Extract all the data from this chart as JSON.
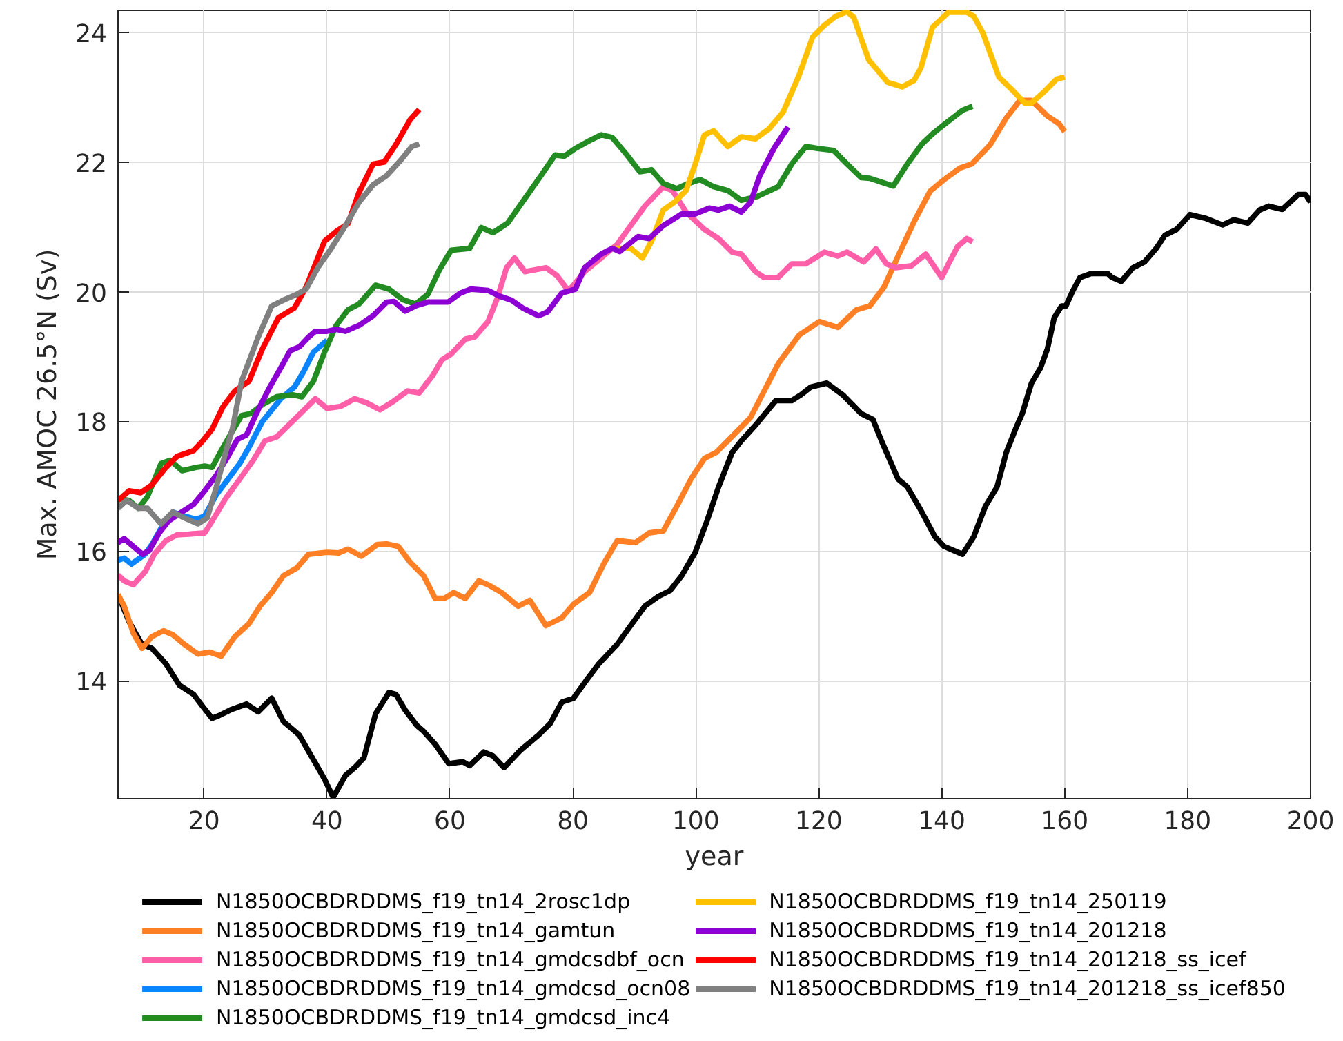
{
  "chart_data": {
    "type": "line",
    "xlabel": "year",
    "ylabel": "Max. AMOC 26.5°N (Sv)",
    "xlim": [
      6,
      200
    ],
    "ylim": [
      12.18,
      24.34
    ],
    "xticks": [
      20,
      40,
      60,
      80,
      100,
      120,
      140,
      160,
      180,
      200
    ],
    "yticks": [
      14,
      16,
      18,
      20,
      22,
      24
    ],
    "grid": true,
    "legend": "bottom",
    "line_style": "solid",
    "series": [
      {
        "name": "N1850OCBDRDDMS_f19_tn14_2rosc1dp",
        "color": "#000000",
        "x": [
          6,
          7.8,
          9.9,
          11.5,
          13.8,
          16,
          18.3,
          19.8,
          21.3,
          22.4,
          24.3,
          26.9,
          28.8,
          31,
          32.9,
          34.4,
          35.5,
          37.8,
          39.6,
          41,
          43,
          44.5,
          46,
          47.9,
          50.1,
          51.2,
          52.7,
          54.6,
          55.7,
          57.6,
          59.8,
          62.1,
          63.2,
          65.5,
          67,
          68.8,
          71.5,
          74.4,
          76.3,
          78.2,
          80.1,
          82.3,
          84.2,
          87.2,
          89.4,
          91.7,
          93.9,
          95.8,
          97.7,
          99.9,
          101.8,
          103.7,
          105.9,
          107.4,
          109.7,
          113,
          115.6,
          117.1,
          118.7,
          121.3,
          123.9,
          126.9,
          128.8,
          130.2,
          132.9,
          134.4,
          136.6,
          138.9,
          140.4,
          143.4,
          145.2,
          147.1,
          149,
          150.5,
          152,
          153.1,
          154.6,
          156.1,
          157.2,
          158.3,
          159.5,
          160.2,
          161.3,
          162.5,
          164.3,
          167,
          167.7,
          169.2,
          171.1,
          173,
          174.9,
          176.3,
          178.2,
          180.4,
          183,
          185.7,
          187.5,
          189.8,
          191.7,
          193.2,
          195.4,
          198,
          199.2,
          200
        ],
        "values": [
          15.33,
          14.91,
          14.56,
          14.5,
          14.26,
          13.93,
          13.79,
          13.6,
          13.42,
          13.46,
          13.55,
          13.64,
          13.52,
          13.73,
          13.37,
          13.25,
          13.16,
          12.78,
          12.48,
          12.2,
          12.54,
          12.66,
          12.81,
          13.49,
          13.82,
          13.79,
          13.55,
          13.31,
          13.22,
          13.02,
          12.72,
          12.75,
          12.69,
          12.9,
          12.84,
          12.66,
          12.93,
          13.16,
          13.34,
          13.67,
          13.73,
          14.02,
          14.26,
          14.56,
          14.85,
          15.15,
          15.3,
          15.39,
          15.62,
          15.98,
          16.46,
          16.99,
          17.52,
          17.7,
          17.94,
          18.32,
          18.32,
          18.41,
          18.53,
          18.59,
          18.41,
          18.12,
          18.03,
          17.7,
          17.11,
          16.99,
          16.63,
          16.22,
          16.07,
          15.95,
          16.22,
          16.69,
          16.99,
          17.52,
          17.88,
          18.12,
          18.59,
          18.83,
          19.12,
          19.6,
          19.78,
          19.78,
          20.01,
          20.22,
          20.28,
          20.28,
          20.22,
          20.16,
          20.37,
          20.46,
          20.67,
          20.87,
          20.96,
          21.19,
          21.13,
          21.03,
          21.11,
          21.06,
          21.26,
          21.32,
          21.27,
          21.5,
          21.5,
          21.38
        ]
      },
      {
        "name": "N1850OCBDRDDMS_f19_tn14_gamtun",
        "color": "#ff7f24",
        "x": [
          6,
          7,
          8.5,
          9.9,
          11.5,
          13.4,
          14.9,
          16.8,
          19,
          20.9,
          22.8,
          25,
          27.3,
          29.1,
          31,
          32.9,
          35.1,
          37,
          40,
          41.9,
          43.4,
          45.6,
          48.2,
          49.7,
          51.6,
          53.5,
          55.7,
          57.6,
          59.1,
          60.6,
          62.5,
          64.7,
          66.2,
          68.4,
          71.1,
          73,
          75.6,
          78.2,
          80.1,
          82.7,
          85,
          87.2,
          90.2,
          92.4,
          94.7,
          96.9,
          99.2,
          101.4,
          103.3,
          105.2,
          108.9,
          113.4,
          116.8,
          120.1,
          123.1,
          126.1,
          128.3,
          130.6,
          132.9,
          135.5,
          138.1,
          140.4,
          143,
          144.9,
          147.9,
          150.5,
          152.7,
          154.6,
          157.2,
          159.1,
          160
        ],
        "values": [
          15.33,
          15.15,
          14.73,
          14.5,
          14.68,
          14.77,
          14.71,
          14.56,
          14.41,
          14.44,
          14.38,
          14.68,
          14.88,
          15.15,
          15.36,
          15.62,
          15.74,
          15.95,
          15.98,
          15.97,
          16.03,
          15.92,
          16.1,
          16.11,
          16.07,
          15.83,
          15.62,
          15.27,
          15.27,
          15.36,
          15.27,
          15.54,
          15.48,
          15.36,
          15.15,
          15.24,
          14.85,
          14.97,
          15.18,
          15.36,
          15.8,
          16.16,
          16.13,
          16.28,
          16.31,
          16.69,
          17.11,
          17.43,
          17.52,
          17.7,
          18.06,
          18.89,
          19.33,
          19.54,
          19.45,
          19.72,
          19.78,
          20.07,
          20.55,
          21.08,
          21.55,
          21.73,
          21.91,
          21.97,
          22.27,
          22.68,
          22.95,
          22.95,
          22.71,
          22.59,
          22.47
        ]
      },
      {
        "name": "N1850OCBDRDDMS_f19_tn14_gmdcsdbf_ocn",
        "color": "#ff5fa8",
        "x": [
          6,
          7,
          8.5,
          10.4,
          11.9,
          13.8,
          15.6,
          17.5,
          20.1,
          21.3,
          23.5,
          25.8,
          28,
          29.9,
          31.8,
          34.7,
          38.1,
          40,
          42.2,
          44.5,
          46.4,
          48.6,
          50.5,
          53.1,
          55,
          57.2,
          58.7,
          60.2,
          62.5,
          64,
          66.2,
          67.7,
          69.2,
          70.5,
          72.2,
          75.6,
          77.4,
          79.3,
          81.9,
          84.2,
          87.2,
          89.4,
          91.7,
          94.7,
          96.2,
          98.4,
          101.4,
          103.7,
          105.9,
          107.4,
          109.7,
          111.1,
          113.4,
          115.6,
          117.9,
          120.9,
          123.1,
          124.6,
          127.3,
          129.3,
          131,
          132.5,
          135.1,
          137.4,
          138.9,
          140,
          141.1,
          142.6,
          144.1,
          145
        ],
        "values": [
          15.63,
          15.54,
          15.48,
          15.68,
          15.95,
          16.16,
          16.25,
          16.26,
          16.28,
          16.46,
          16.81,
          17.11,
          17.4,
          17.7,
          17.76,
          18.03,
          18.35,
          18.2,
          18.23,
          18.35,
          18.29,
          18.18,
          18.29,
          18.47,
          18.44,
          18.71,
          18.95,
          19.04,
          19.27,
          19.3,
          19.54,
          19.9,
          20.37,
          20.52,
          20.31,
          20.37,
          20.25,
          20.01,
          20.31,
          20.49,
          20.73,
          21.02,
          21.32,
          21.62,
          21.56,
          21.23,
          20.96,
          20.82,
          20.61,
          20.58,
          20.31,
          20.22,
          20.22,
          20.43,
          20.43,
          20.61,
          20.55,
          20.61,
          20.46,
          20.66,
          20.43,
          20.37,
          20.4,
          20.58,
          20.37,
          20.22,
          20.43,
          20.7,
          20.82,
          20.77
        ]
      },
      {
        "name": "N1850OCBDRDDMS_f19_tn14_gmdcsd_ocn08",
        "color": "#0a84ff",
        "x": [
          6,
          7,
          8.2,
          10.4,
          11.5,
          13.4,
          14.9,
          16.8,
          18.7,
          20.1,
          22,
          23.9,
          25.8,
          27.3,
          29.5,
          32.5,
          34.7,
          36.2,
          37.8,
          40
        ],
        "values": [
          15.86,
          15.89,
          15.8,
          15.95,
          16.1,
          16.42,
          16.6,
          16.54,
          16.49,
          16.54,
          16.87,
          17.11,
          17.35,
          17.6,
          18.0,
          18.35,
          18.53,
          18.77,
          19.07,
          19.25
        ]
      },
      {
        "name": "N1850OCBDRDDMS_f19_tn14_gmdcsd_inc4",
        "color": "#228b22",
        "x": [
          6,
          7.8,
          9.3,
          10.8,
          13,
          14.5,
          16.4,
          18.7,
          20.1,
          21.3,
          22.8,
          24.3,
          26.1,
          27.6,
          29.5,
          31.8,
          34.4,
          35.9,
          37.8,
          39.6,
          41.5,
          43.4,
          45.2,
          47.9,
          50.1,
          52.3,
          54.4,
          56.4,
          58.3,
          60.2,
          63.2,
          65.1,
          67,
          69.4,
          72.2,
          74.8,
          77.1,
          78.6,
          80.4,
          82.7,
          84.6,
          86.4,
          88.7,
          90.9,
          92.8,
          94.7,
          96.9,
          98.8,
          100.7,
          102.9,
          105.2,
          107.4,
          110,
          113.4,
          115.6,
          117.9,
          119.8,
          122.4,
          124.6,
          126.9,
          128.3,
          130.2,
          132.1,
          134.4,
          136.8,
          138.7,
          140.4,
          143.4,
          145
        ],
        "values": [
          16.81,
          16.78,
          16.66,
          16.84,
          17.35,
          17.4,
          17.24,
          17.29,
          17.31,
          17.29,
          17.55,
          17.8,
          18.09,
          18.12,
          18.26,
          18.38,
          18.41,
          18.38,
          18.62,
          19.07,
          19.48,
          19.72,
          19.81,
          20.1,
          20.04,
          19.88,
          19.81,
          19.96,
          20.34,
          20.64,
          20.67,
          20.99,
          20.91,
          21.06,
          21.44,
          21.79,
          22.11,
          22.09,
          22.21,
          22.33,
          22.42,
          22.38,
          22.12,
          21.85,
          21.88,
          21.67,
          21.59,
          21.67,
          21.73,
          21.62,
          21.56,
          21.41,
          21.47,
          21.62,
          21.97,
          22.24,
          22.21,
          22.18,
          21.97,
          21.76,
          21.75,
          21.69,
          21.63,
          21.97,
          22.28,
          22.45,
          22.58,
          22.8,
          22.86
        ]
      },
      {
        "name": "N1850OCBDRDDMS_f19_tn14_250119",
        "color": "#ffc000",
        "x": [
          86.4,
          89.4,
          91.3,
          92.8,
          94.7,
          96.5,
          98.4,
          99.9,
          101.4,
          102.9,
          105.2,
          107.4,
          109.7,
          111.9,
          114.2,
          116.8,
          119,
          120.9,
          122.8,
          124.6,
          125.7,
          128.1,
          131.2,
          133.6,
          135.5,
          136.6,
          138.5,
          141.1,
          144.1,
          145.2,
          146.7,
          149.3,
          151.6,
          153.5,
          154.6,
          156.5,
          158.7,
          160
        ],
        "values": [
          20.67,
          20.67,
          20.52,
          20.78,
          21.26,
          21.38,
          21.56,
          21.97,
          22.42,
          22.48,
          22.24,
          22.39,
          22.36,
          22.51,
          22.77,
          23.34,
          23.93,
          24.11,
          24.25,
          24.32,
          24.23,
          23.58,
          23.23,
          23.16,
          23.26,
          23.45,
          24.08,
          24.31,
          24.31,
          24.25,
          23.99,
          23.31,
          23.1,
          22.91,
          22.91,
          23.07,
          23.28,
          23.31
        ]
      },
      {
        "name": "N1850OCBDRDDMS_f19_tn14_201218",
        "color": "#8c00d4",
        "x": [
          6,
          7,
          8.5,
          10,
          11.1,
          12.7,
          14.2,
          16,
          18.3,
          20.1,
          22,
          23.9,
          25.4,
          26.9,
          28.8,
          30.7,
          32.5,
          34,
          35.5,
          37,
          38.1,
          40,
          41.5,
          43,
          45.2,
          47.5,
          49.7,
          50.9,
          52.7,
          54.6,
          56.4,
          59.7,
          61.7,
          63.4,
          66.2,
          68.1,
          70,
          71.8,
          74.4,
          75.9,
          78.2,
          80.4,
          81.9,
          84.6,
          86.4,
          87.6,
          90.6,
          92.4,
          94.7,
          97.7,
          99.9,
          102.2,
          103.7,
          105.5,
          107.4,
          108.9,
          110.4,
          112.7,
          115
        ],
        "values": [
          16.13,
          16.19,
          16.07,
          15.95,
          16.01,
          16.28,
          16.46,
          16.58,
          16.72,
          16.93,
          17.17,
          17.46,
          17.72,
          17.79,
          18.18,
          18.53,
          18.83,
          19.09,
          19.15,
          19.3,
          19.39,
          19.39,
          19.42,
          19.39,
          19.48,
          19.63,
          19.84,
          19.85,
          19.7,
          19.79,
          19.84,
          19.84,
          19.98,
          20.04,
          20.02,
          19.93,
          19.87,
          19.75,
          19.63,
          19.69,
          19.98,
          20.04,
          20.37,
          20.58,
          20.67,
          20.62,
          20.85,
          20.82,
          21.02,
          21.2,
          21.2,
          21.29,
          21.26,
          21.32,
          21.23,
          21.38,
          21.79,
          22.21,
          22.54
        ]
      },
      {
        "name": "N1850OCBDRDDMS_f19_tn14_201218_ss_icef",
        "color": "#ff0000",
        "x": [
          6,
          7.8,
          9.7,
          11.5,
          13.8,
          15.6,
          18.3,
          19.8,
          21.3,
          23.1,
          25,
          27.3,
          29.5,
          32.1,
          34.7,
          36.6,
          39.6,
          41.5,
          43.4,
          45.2,
          47.5,
          49.3,
          51.2,
          53.5,
          55
        ],
        "values": [
          16.78,
          16.93,
          16.9,
          17.02,
          17.29,
          17.46,
          17.55,
          17.7,
          17.88,
          18.23,
          18.47,
          18.62,
          19.12,
          19.6,
          19.75,
          20.07,
          20.78,
          20.93,
          21.05,
          21.53,
          21.97,
          22.0,
          22.27,
          22.65,
          22.81
        ]
      },
      {
        "name": "N1850OCBDRDDMS_f19_tn14_201218_ss_icef850",
        "color": "#808080",
        "x": [
          6,
          7.4,
          9.3,
          10.8,
          13,
          14.9,
          16.8,
          19,
          20.5,
          22,
          23.5,
          24.6,
          26.1,
          28.8,
          31,
          32.9,
          35.1,
          36.6,
          38.5,
          40.7,
          43,
          45.2,
          47.5,
          49.7,
          52,
          53.8,
          55
        ],
        "values": [
          16.66,
          16.78,
          16.66,
          16.66,
          16.42,
          16.6,
          16.51,
          16.42,
          16.51,
          16.99,
          17.52,
          17.88,
          18.62,
          19.3,
          19.78,
          19.87,
          19.96,
          20.04,
          20.37,
          20.67,
          21.02,
          21.38,
          21.65,
          21.79,
          22.03,
          22.24,
          22.28
        ]
      }
    ]
  }
}
